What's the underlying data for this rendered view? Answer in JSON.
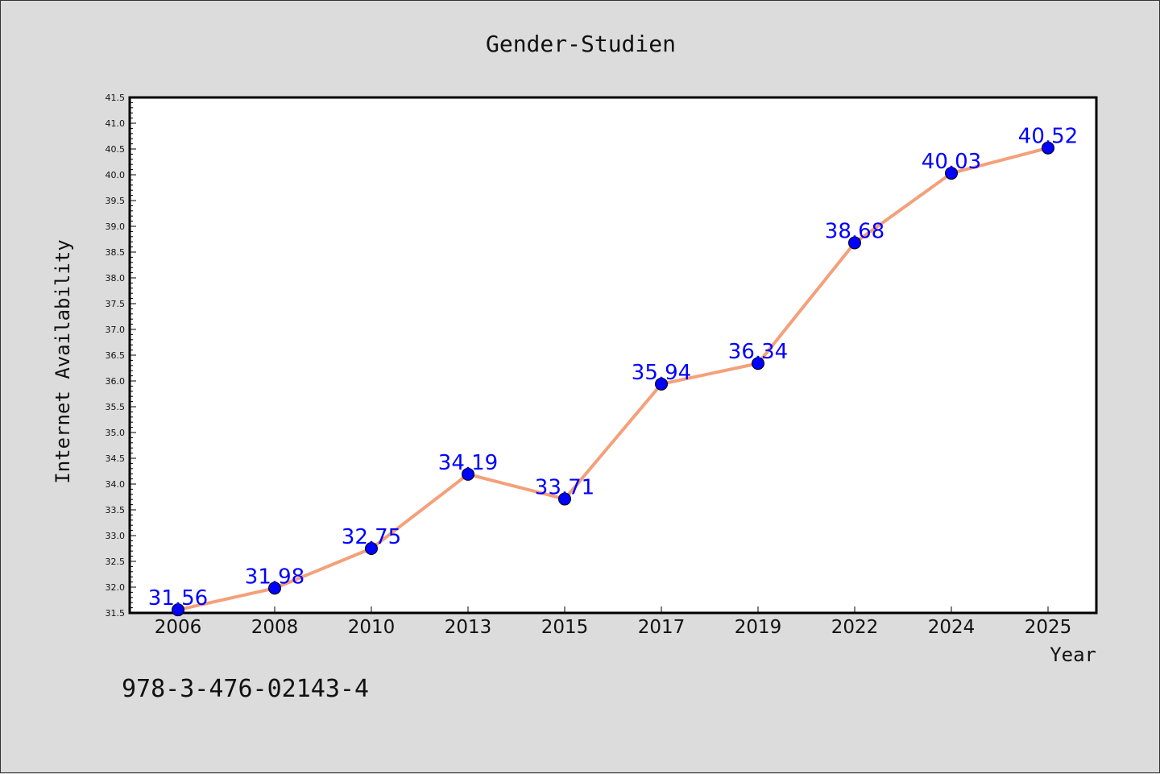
{
  "chart_data": {
    "type": "line",
    "title": "Gender-Studien",
    "xlabel": "Year",
    "ylabel": "Internet Availability",
    "categories": [
      "2006",
      "2008",
      "2010",
      "2013",
      "2015",
      "2017",
      "2019",
      "2022",
      "2024",
      "2025"
    ],
    "series": [
      {
        "values": [
          31.56,
          31.98,
          32.75,
          34.19,
          33.71,
          35.94,
          36.34,
          38.68,
          40.03,
          40.52
        ],
        "data_labels": [
          "31.56",
          "31.98",
          "32.75",
          "34.19",
          "33.71",
          "35.94",
          "36.34",
          "38.68",
          "40.03",
          "40.52"
        ],
        "line_color": "#f4a07a",
        "marker_color": "#0000ff"
      }
    ],
    "ylim": [
      31.5,
      41.5
    ],
    "yticks": [
      "31.5",
      "32.0",
      "32.5",
      "33.0",
      "33.5",
      "34.0",
      "34.5",
      "35.0",
      "35.5",
      "36.0",
      "36.5",
      "37.0",
      "37.5",
      "38.0",
      "38.5",
      "39.0",
      "39.5",
      "40.0",
      "40.5",
      "41.0",
      "41.5"
    ],
    "grid": false,
    "legend": "none"
  },
  "annotation": "978-3-476-02143-4"
}
